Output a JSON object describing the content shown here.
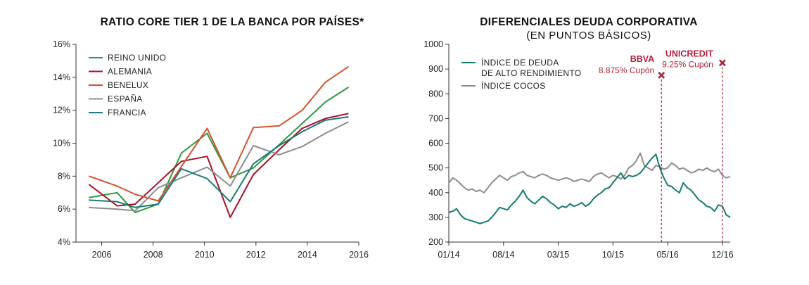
{
  "chart_data": [
    {
      "type": "line",
      "title": "RATIO CORE TIER 1 DE LA BANCA POR PAÍSES*",
      "x_ticks": [
        "2006",
        "2008",
        "2010",
        "2012",
        "2014",
        "2016"
      ],
      "y_ticks": [
        "16%",
        "14%",
        "12%",
        "10%",
        "8%",
        "6%",
        "4%"
      ],
      "xlim": [
        2005,
        2016
      ],
      "ylim": [
        4,
        16
      ],
      "x": [
        2005.5,
        2006.6,
        2007.3,
        2008.2,
        2009.1,
        2010.1,
        2011.0,
        2011.9,
        2012.9,
        2013.8,
        2014.7,
        2015.6
      ],
      "legend_position": "top-left",
      "series": [
        {
          "name": "REINO UNIDO",
          "color": "#2e9a3e",
          "values": [
            6.7,
            7.0,
            5.8,
            6.3,
            9.4,
            10.6,
            7.9,
            8.5,
            9.9,
            11.2,
            12.5,
            13.4
          ]
        },
        {
          "name": "ALEMANIA",
          "color": "#a8102c",
          "values": [
            7.5,
            6.2,
            6.3,
            7.6,
            8.9,
            9.2,
            5.5,
            8.1,
            9.6,
            10.9,
            11.5,
            11.8
          ]
        },
        {
          "name": "BENELUX",
          "color": "#d2522c",
          "values": [
            8.0,
            7.4,
            6.9,
            6.5,
            null,
            10.9,
            7.9,
            10.95,
            11.05,
            12.0,
            13.7,
            14.65
          ]
        },
        {
          "name": "ESPAÑA",
          "color": "#8c8c8c",
          "values": [
            6.1,
            6.0,
            5.9,
            7.3,
            7.9,
            8.55,
            7.4,
            9.85,
            9.3,
            9.8,
            10.6,
            11.3
          ]
        },
        {
          "name": "FRANCIA",
          "color": "#1a7a78",
          "values": [
            6.55,
            6.45,
            6.1,
            6.3,
            8.45,
            7.85,
            6.45,
            8.75,
            9.85,
            10.7,
            11.4,
            11.6
          ]
        }
      ]
    },
    {
      "type": "line",
      "title": "DIFERENCIALES DEUDA CORPORATIVA",
      "subtitle": "(EN PUNTOS BÁSICOS)",
      "x_ticks": [
        "01/14",
        "08/14",
        "03/15",
        "10/15",
        "05/16",
        "12/16"
      ],
      "y_ticks": [
        "1000",
        "900",
        "800",
        "700",
        "600",
        "500",
        "400",
        "300",
        "200"
      ],
      "xlim": [
        0,
        36
      ],
      "ylim": [
        200,
        1000
      ],
      "legend_position": "top-left",
      "series": [
        {
          "name": "ÍNDICE DE DEUDA DE ALTO RENDIMIENTO",
          "color": "#127a72",
          "x": [
            0,
            0.5,
            1,
            1.5,
            2,
            2.5,
            3,
            3.5,
            4,
            4.5,
            5,
            5.5,
            6,
            6.5,
            7,
            7.5,
            8,
            8.5,
            9,
            9.5,
            10,
            10.5,
            11,
            11.5,
            12,
            12.5,
            13,
            13.5,
            14,
            14.5,
            15,
            15.5,
            16,
            16.5,
            17,
            17.5,
            18,
            18.5,
            19,
            19.5,
            20,
            20.5,
            21,
            21.5,
            22,
            22.5,
            23,
            23.5,
            24,
            24.5,
            25,
            25.5,
            26,
            26.5,
            27,
            27.5,
            28,
            28.5,
            29,
            29.5,
            30,
            30.5,
            31,
            31.5,
            32,
            32.5,
            33,
            33.5,
            34,
            34.5,
            35,
            35.5,
            36
          ],
          "values": [
            320,
            325,
            335,
            310,
            295,
            290,
            285,
            280,
            275,
            280,
            285,
            300,
            320,
            340,
            335,
            330,
            350,
            365,
            385,
            410,
            380,
            365,
            355,
            370,
            385,
            375,
            360,
            350,
            335,
            345,
            340,
            355,
            345,
            350,
            360,
            345,
            355,
            375,
            390,
            400,
            415,
            420,
            440,
            460,
            480,
            455,
            470,
            465,
            470,
            480,
            500,
            520,
            540,
            555,
            500,
            460,
            430,
            425,
            410,
            400,
            440,
            420,
            410,
            390,
            370,
            360,
            345,
            340,
            325,
            350,
            345,
            310,
            300
          ]
        },
        {
          "name": "ÍNDICE COCOS",
          "color": "#8c8c8c",
          "x": [
            0,
            0.5,
            1,
            1.5,
            2,
            2.5,
            3,
            3.5,
            4,
            4.5,
            5,
            5.5,
            6,
            6.5,
            7,
            7.5,
            8,
            8.5,
            9,
            9.5,
            10,
            10.5,
            11,
            11.5,
            12,
            12.5,
            13,
            13.5,
            14,
            14.5,
            15,
            15.5,
            16,
            16.5,
            17,
            17.5,
            18,
            18.5,
            19,
            19.5,
            20,
            20.5,
            21,
            21.5,
            22,
            22.5,
            23,
            23.5,
            24,
            24.5,
            25,
            25.5,
            26,
            26.5,
            27,
            27.5,
            28,
            28.5,
            29,
            29.5,
            30,
            30.5,
            31,
            31.5,
            32,
            32.5,
            33,
            33.5,
            34,
            34.5,
            35,
            35.5,
            36
          ],
          "values": [
            440,
            460,
            450,
            435,
            420,
            410,
            415,
            405,
            410,
            400,
            420,
            440,
            455,
            470,
            460,
            450,
            465,
            470,
            480,
            485,
            470,
            465,
            460,
            470,
            475,
            470,
            460,
            455,
            450,
            455,
            460,
            455,
            445,
            450,
            455,
            450,
            445,
            465,
            475,
            480,
            470,
            460,
            470,
            465,
            455,
            470,
            500,
            510,
            530,
            560,
            510,
            500,
            490,
            510,
            505,
            495,
            500,
            520,
            510,
            495,
            500,
            490,
            480,
            485,
            495,
            490,
            500,
            490,
            485,
            495,
            470,
            460,
            465
          ]
        }
      ],
      "annotations": [
        {
          "bold": "BBVA",
          "text": "8.875% Cupón",
          "x": 27.2,
          "y": 875,
          "color": "#b0203a"
        },
        {
          "bold": "UNICREDIT",
          "text": "9.25% Cupón",
          "x": 35.0,
          "y": 925,
          "color": "#b0203a"
        }
      ]
    }
  ]
}
